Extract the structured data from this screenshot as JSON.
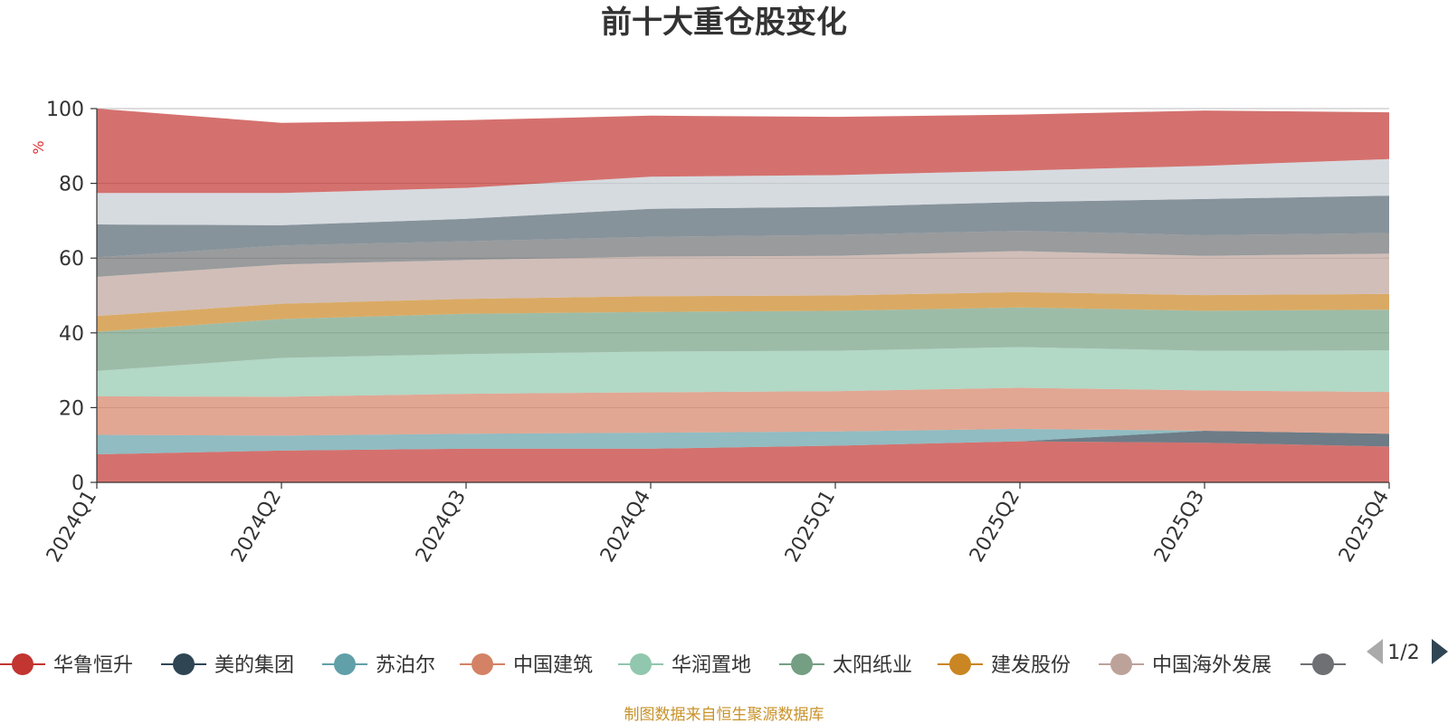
{
  "chart_data": {
    "type": "area",
    "stacked": true,
    "title": "前十大重仓股变化",
    "ylabel": "%",
    "ylim": [
      0,
      100
    ],
    "yticks": [
      0,
      20,
      40,
      60,
      80,
      100
    ],
    "categories": [
      "2024Q1",
      "2024Q2",
      "2024Q3",
      "2024Q4",
      "2025Q1",
      "2025Q2",
      "2025Q3",
      "2025Q4"
    ],
    "series": [
      {
        "name": "华鲁恒升",
        "color": "#c23531",
        "values": [
          7.5,
          8.5,
          9.0,
          9.0,
          9.8,
          11.0,
          10.6,
          9.6
        ]
      },
      {
        "name": "美的集团",
        "color": "#2f4554",
        "values": [
          0,
          0,
          0,
          0,
          0,
          0,
          3.2,
          3.4
        ]
      },
      {
        "name": "苏泊尔",
        "color": "#61a0a8",
        "values": [
          5.2,
          4.0,
          4.0,
          4.3,
          3.8,
          3.3,
          0,
          0
        ]
      },
      {
        "name": "中国建筑",
        "color": "#d48265",
        "values": [
          10.3,
          10.4,
          10.7,
          10.8,
          10.8,
          11.0,
          10.8,
          11.2
        ]
      },
      {
        "name": "华润置地",
        "color": "#91c7ae",
        "values": [
          6.8,
          10.4,
          10.6,
          10.9,
          10.8,
          10.9,
          10.6,
          11.1
        ]
      },
      {
        "name": "太阳纸业",
        "color": "#749f83",
        "values": [
          10.5,
          10.4,
          10.8,
          10.6,
          10.7,
          10.6,
          10.7,
          10.9
        ]
      },
      {
        "name": "建发股份",
        "color": "#ca8622",
        "values": [
          4.2,
          4.1,
          4.0,
          4.2,
          4.1,
          4.1,
          4.2,
          4.2
        ]
      },
      {
        "name": "中国海外发展",
        "color": "#bda29a",
        "values": [
          10.5,
          10.5,
          10.4,
          10.6,
          10.6,
          11.0,
          10.5,
          10.8
        ]
      },
      {
        "name": "",
        "color": "#6e7074",
        "values": [
          5.2,
          5.1,
          5.0,
          5.3,
          5.6,
          5.4,
          5.5,
          5.5
        ]
      },
      {
        "name": "",
        "color": "#546570",
        "values": [
          8.8,
          5.4,
          6.0,
          7.5,
          7.5,
          7.7,
          9.7,
          10.0
        ]
      },
      {
        "name": "",
        "color": "#c4ccd3",
        "values": [
          8.4,
          8.6,
          8.3,
          8.6,
          8.5,
          8.4,
          8.9,
          9.8
        ]
      },
      {
        "name": "",
        "color": "#c23531",
        "values": [
          22.6,
          18.8,
          18.1,
          16.3,
          15.6,
          15.0,
          14.8,
          12.5
        ]
      }
    ]
  },
  "legend": {
    "visible_count": 9,
    "page": "1/2"
  },
  "source_note": "制图数据来自恒生聚源数据库"
}
